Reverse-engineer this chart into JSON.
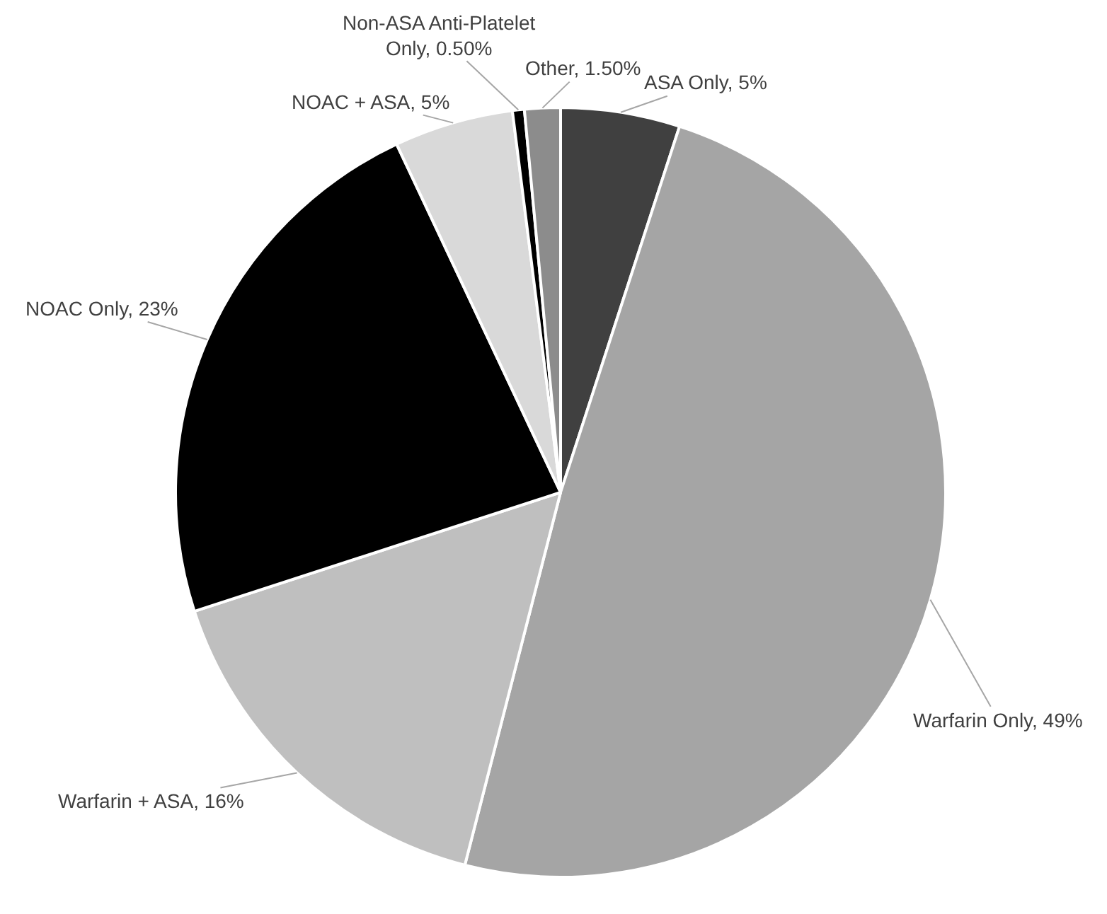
{
  "chart_data": {
    "type": "pie",
    "categories": [
      "ASA Only",
      "Warfarin Only",
      "Warfarin + ASA",
      "NOAC Only",
      "NOAC + ASA",
      "Non-ASA Anti-Platelet Only",
      "Other"
    ],
    "values": [
      5,
      49,
      16,
      23,
      5,
      0.5,
      1.5
    ],
    "colors": [
      "#404040",
      "#a5a5a5",
      "#bfbfbf",
      "#000000",
      "#d9d9d9",
      "#000000",
      "#8c8c8c"
    ],
    "value_labels": [
      "5%",
      "49%",
      "16%",
      "23%",
      "5%",
      "0.50%",
      "1.50%"
    ]
  }
}
